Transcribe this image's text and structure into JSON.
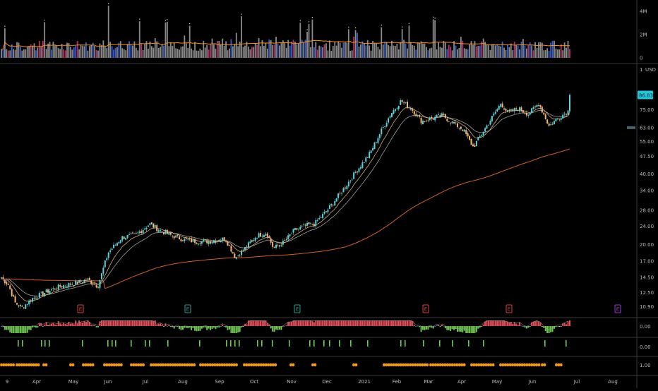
{
  "colors": {
    "background": "#000000",
    "panel_border": "#3a3a3a",
    "axis_text": "#bdbdbd",
    "up_candle": "#5fd0d8",
    "down_candle": "#f2b77a",
    "ema_fast": "#e8c08a",
    "ema_mid": "#b8b8b8",
    "ma_slow": "#d0622a",
    "volume_bar": "#8a8a8a",
    "volume_up": "#3a5fc8",
    "volume_down": "#b8306a",
    "volume_avg": "#f0902a",
    "osc_red": "#e0505a",
    "osc_green": "#6cc850",
    "osc_blue": "#4f72d8",
    "osc_yellow": "#e8c84a",
    "signal_green": "#6cc850",
    "dot_orange": "#f39a1e",
    "price_tag": "#26c6da",
    "earnings_red": "#d84040",
    "earnings_teal": "#2a9d8f",
    "earnings_purple": "#9a3cc8"
  },
  "chart_data": [
    {
      "type": "bar",
      "name_hint": "volume pane",
      "yticks": [
        "4M",
        "2M",
        "0"
      ],
      "ylim": [
        0,
        4500000
      ],
      "volume_average_line": true
    },
    {
      "type": "line",
      "name_hint": "price pane",
      "currency": "USD",
      "last_price_label": "86.83",
      "log_scale": true,
      "yticks": [
        "75.00",
        "63.00",
        "55.00",
        "47.50",
        "40.00",
        "34.00",
        "28.00",
        "24.00",
        "20.00",
        "17.00",
        "14.50",
        "12.50",
        "10.90"
      ],
      "ylim": [
        10.2,
        96
      ],
      "monthly_closes": [
        {
          "month": "Mar",
          "close": 13.0
        },
        {
          "month": "Apr",
          "close": 13.3
        },
        {
          "month": "May",
          "close": 14.0
        },
        {
          "month": "Jun",
          "close": 21.5
        },
        {
          "month": "Jul",
          "close": 23.5
        },
        {
          "month": "Aug",
          "close": 20.5
        },
        {
          "month": "Sep",
          "close": 18.5
        },
        {
          "month": "Oct",
          "close": 21.0
        },
        {
          "month": "Nov",
          "close": 25.0
        },
        {
          "month": "Dec",
          "close": 42.0
        },
        {
          "month": "2021",
          "close": 80.0
        },
        {
          "month": "Feb",
          "close": 72.0
        },
        {
          "month": "Mar",
          "close": 65.0
        },
        {
          "month": "Apr",
          "close": 78.0
        },
        {
          "month": "May",
          "close": 70.0
        },
        {
          "month": "Jun",
          "close": 82.0
        },
        {
          "month": "Jul",
          "close": 86.83
        }
      ],
      "earnings_markers": [
        {
          "label": "E",
          "month": "May",
          "color": "earnings_red"
        },
        {
          "label": "E",
          "month": "Aug",
          "color": "earnings_teal"
        },
        {
          "label": "E",
          "month": "Nov",
          "color": "earnings_teal"
        },
        {
          "label": "E",
          "month": "Mar",
          "color": "earnings_red"
        },
        {
          "label": "E",
          "month": "May",
          "color": "earnings_red"
        },
        {
          "label": "E",
          "month": "Aug",
          "color": "earnings_purple"
        }
      ],
      "top_tick": "1"
    },
    {
      "type": "bar",
      "name_hint": "oscillator pane",
      "yticks": [
        "0.00"
      ]
    },
    {
      "type": "bar",
      "name_hint": "signal pane",
      "yticks": [
        "0.00"
      ]
    },
    {
      "type": "scatter",
      "name_hint": "dot pane",
      "yticks": [
        "1.00"
      ]
    }
  ],
  "x_axis": {
    "labels": [
      "9",
      "Apr",
      "May",
      "Jun",
      "Jul",
      "Aug",
      "Sep",
      "Oct",
      "Nov",
      "Dec",
      "2021",
      "Feb",
      "Mar",
      "Apr",
      "May",
      "Jun",
      "Jul",
      "Aug"
    ]
  }
}
